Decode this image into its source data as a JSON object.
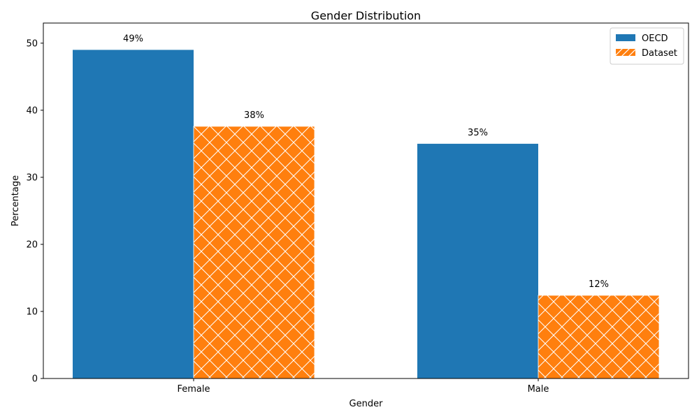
{
  "chart_data": {
    "type": "bar",
    "title": "Gender Distribution",
    "xlabel": "Gender",
    "ylabel": "Percentage",
    "categories": [
      "Female",
      "Male"
    ],
    "series": [
      {
        "name": "OECD",
        "values": [
          49,
          35
        ],
        "labels": [
          "49%",
          "35%"
        ],
        "color": "#1f77b4",
        "hatch": "none"
      },
      {
        "name": "Dataset",
        "values": [
          37.6,
          12.4
        ],
        "labels": [
          "38%",
          "12%"
        ],
        "color": "#ff7f0e",
        "hatch": "x"
      }
    ],
    "ylim": [
      0,
      53
    ],
    "yticks": [
      0,
      10,
      20,
      30,
      40,
      50
    ],
    "grid": false,
    "legend_position": "top-right"
  }
}
